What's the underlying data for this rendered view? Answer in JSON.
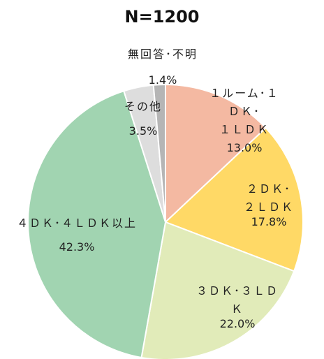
{
  "chart_data": {
    "type": "pie",
    "title": "N=1200",
    "categories": [
      "１ルーム･１ＤＫ･\n１ＬＤＫ",
      "２ＤＫ･２ＬＤＫ",
      "３ＤＫ･３ＬＤＫ",
      "４ＤＫ･４ＬＤＫ以上",
      "その他",
      "無回答･不明"
    ],
    "values": [
      13.0,
      17.8,
      22.0,
      42.3,
      3.5,
      1.4
    ],
    "value_labels": [
      "13.0%",
      "17.8%",
      "22.0%",
      "42.3%",
      "3.5%",
      "1.4%"
    ],
    "colors": [
      "#f4b9a2",
      "#ffd966",
      "#e1ebb9",
      "#a1d4b1",
      "#dddddd",
      "#b5b5b5"
    ]
  }
}
